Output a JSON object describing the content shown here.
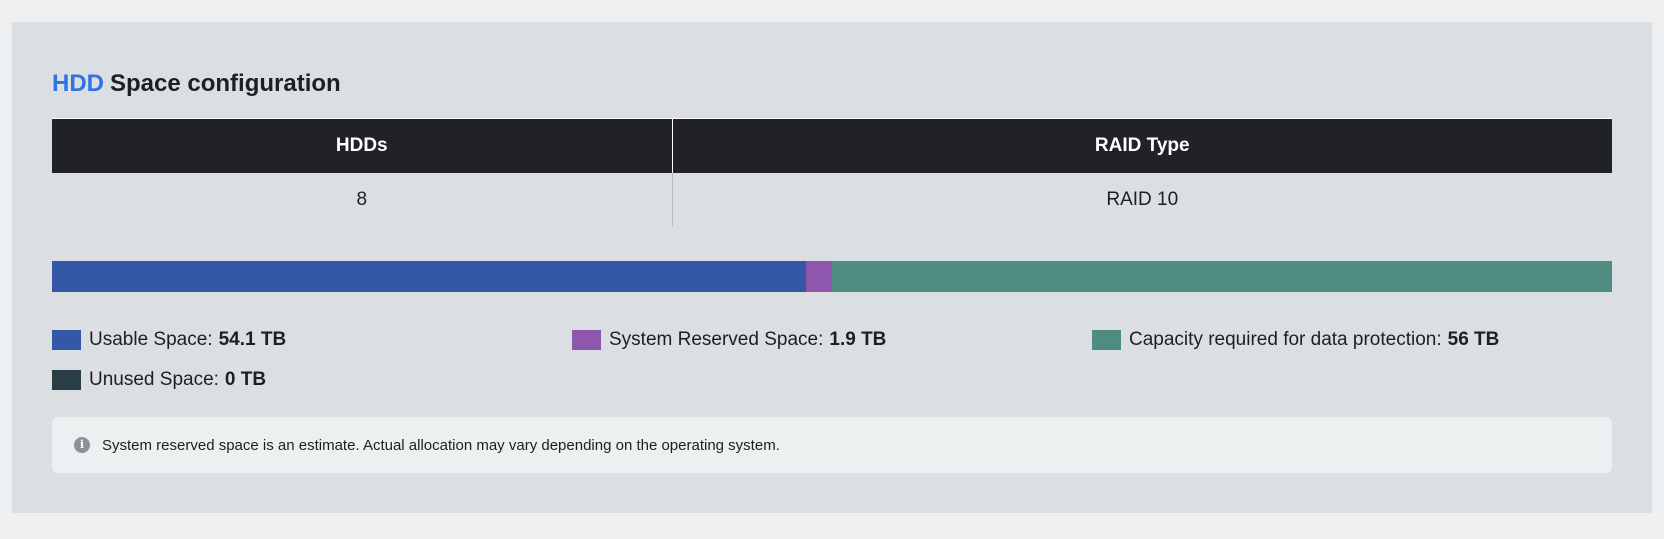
{
  "heading": {
    "accent": "HDD",
    "title": "Space configuration"
  },
  "table": {
    "headers": [
      "HDDs",
      "RAID Type"
    ],
    "row": [
      "8",
      "RAID 10"
    ]
  },
  "capacity": {
    "unit": "TB",
    "segments": [
      {
        "label": "Usable Space:",
        "value": "54.1 TB",
        "tb": 54.1,
        "color": "#3557a7"
      },
      {
        "label": "System Reserved Space:",
        "value": "1.9 TB",
        "tb": 1.9,
        "color": "#8e56ad"
      },
      {
        "label": "Capacity required for data protection:",
        "value": "56 TB",
        "tb": 56,
        "color": "#4e8b80"
      },
      {
        "label": "Unused Space:",
        "value": "0 TB",
        "tb": 0,
        "color": "#273e47"
      }
    ]
  },
  "notice": {
    "icon": "info-icon",
    "text": "System reserved space is an estimate. Actual allocation may vary depending on the operating system."
  }
}
